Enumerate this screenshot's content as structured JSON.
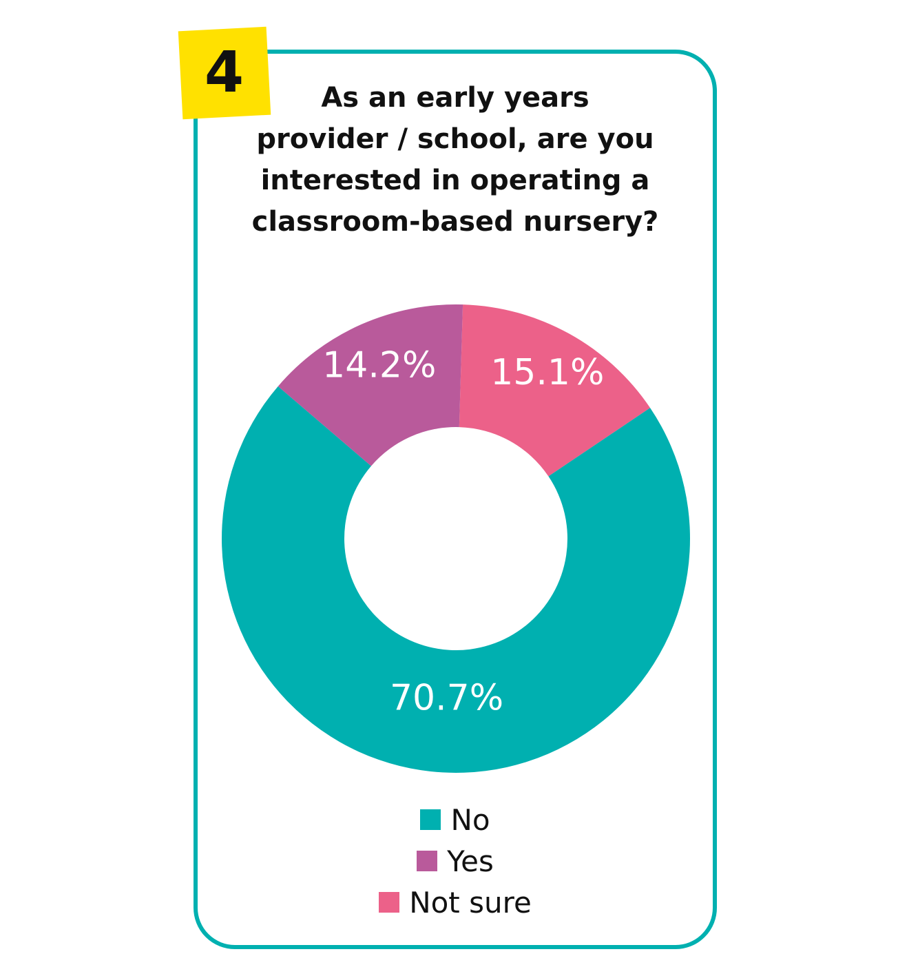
{
  "badge": {
    "number": "4"
  },
  "chart_data": {
    "type": "pie",
    "title_lines": [
      "As an early years",
      "provider / school, are you",
      "interested in operating a",
      "classroom-based nursery?"
    ],
    "slices": [
      {
        "name": "No",
        "value": 70.7,
        "label": "70.7%",
        "color": "#00b0b0"
      },
      {
        "name": "Yes",
        "value": 14.2,
        "label": "14.2%",
        "color": "#b95a9b"
      },
      {
        "name": "Not sure",
        "value": 15.1,
        "label": "15.1%",
        "color": "#ec6189"
      }
    ],
    "legend_position": "bottom",
    "style": "donut"
  },
  "colors": {
    "accent": "#00b0b0",
    "badge": "#ffe100"
  }
}
